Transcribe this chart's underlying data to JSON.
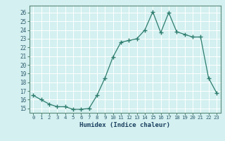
{
  "x": [
    0,
    1,
    2,
    3,
    4,
    5,
    6,
    7,
    8,
    9,
    10,
    11,
    12,
    13,
    14,
    15,
    16,
    17,
    18,
    19,
    20,
    21,
    22,
    23
  ],
  "y": [
    16.5,
    16.0,
    15.5,
    15.2,
    15.2,
    14.9,
    14.9,
    15.0,
    16.5,
    18.5,
    20.9,
    22.6,
    22.8,
    23.0,
    24.0,
    26.1,
    23.7,
    26.0,
    23.8,
    23.5,
    23.2,
    23.2,
    18.5,
    16.8
  ],
  "ylim": [
    14.5,
    26.8
  ],
  "xlim": [
    -0.5,
    23.5
  ],
  "yticks": [
    15,
    16,
    17,
    18,
    19,
    20,
    21,
    22,
    23,
    24,
    25,
    26
  ],
  "xticks": [
    0,
    1,
    2,
    3,
    4,
    5,
    6,
    7,
    8,
    9,
    10,
    11,
    12,
    13,
    14,
    15,
    16,
    17,
    18,
    19,
    20,
    21,
    22,
    23
  ],
  "xlabel": "Humidex (Indice chaleur)",
  "line_color": "#2e7d6e",
  "marker": "+",
  "bg_color": "#d4f0f0",
  "grid_color": "#ffffff",
  "tick_color": "#2e5d6e",
  "label_color": "#1a4060",
  "spine_color": "#5a8a7a"
}
